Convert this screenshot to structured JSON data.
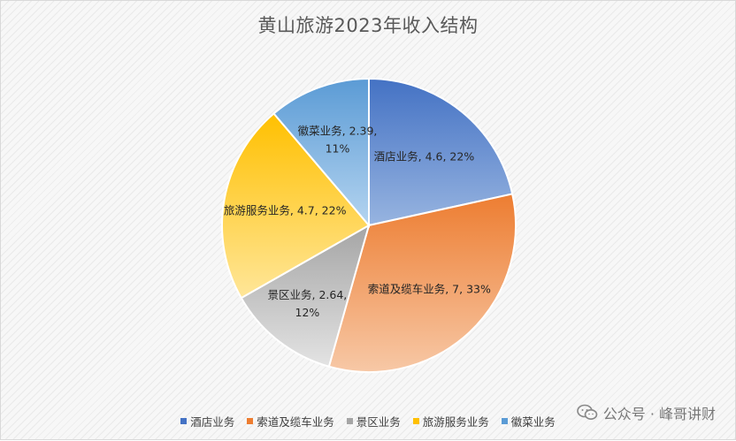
{
  "chart_data": {
    "type": "pie",
    "title": "黄山旅游2023年收入结构",
    "slices": [
      {
        "name": "酒店业务",
        "value": 4.6,
        "pct": "22%",
        "label": "酒店业务, 4.6, 22%",
        "color_light": "#97b4e0",
        "color_dark": "#4472c4"
      },
      {
        "name": "索道及缆车业务",
        "value": 7,
        "pct": "33%",
        "label": "索道及缆车业务, 7, 33%",
        "color_light": "#f7c8a6",
        "color_dark": "#ed7d31"
      },
      {
        "name": "景区业务",
        "value": 2.64,
        "pct": "12%",
        "label_lines": [
          "景区业务, 2.64,",
          "12%"
        ],
        "color_light": "#e3e3e3",
        "color_dark": "#a5a5a5"
      },
      {
        "name": "旅游服务业务",
        "value": 4.7,
        "pct": "22%",
        "label": "旅游服务业务, 4.7, 22%",
        "color_light": "#ffe699",
        "color_dark": "#ffc000"
      },
      {
        "name": "徽菜业务",
        "value": 2.39,
        "pct": "11%",
        "label_lines": [
          "徽菜业务, 2.39,",
          "11%"
        ],
        "color_light": "#b4d4f0",
        "color_dark": "#5b9bd5"
      }
    ],
    "legend_position": "bottom"
  },
  "watermark": "公众号 · 峰哥讲财"
}
